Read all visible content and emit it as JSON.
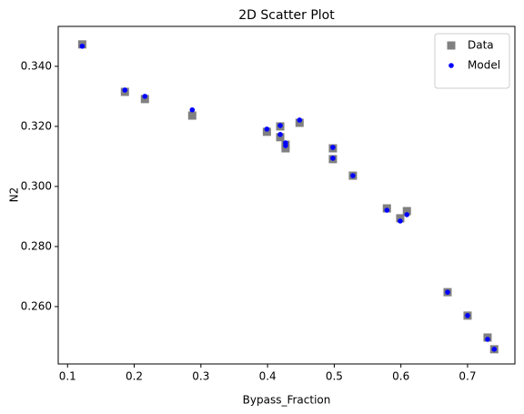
{
  "chart_data": {
    "type": "scatter",
    "title": "2D Scatter Plot",
    "x_label": "Bypass_Fraction",
    "y_label": "N2",
    "xlim": [
      0.086,
      0.771
    ],
    "ylim": [
      0.2409,
      0.3533
    ],
    "xticks": [
      0.1,
      0.2,
      0.3,
      0.4,
      0.5,
      0.6,
      0.7
    ],
    "yticks": [
      {
        "value": 0.26,
        "label": "0.260"
      },
      {
        "value": 0.28,
        "label": "0.280"
      },
      {
        "value": 0.3,
        "label": "0.300"
      },
      {
        "value": 0.32,
        "label": "0.320"
      },
      {
        "value": 0.34,
        "label": "0.340"
      }
    ],
    "legend": "upper right",
    "series": [
      {
        "name": "Data",
        "color": "#808080",
        "marker": "square",
        "x": [
          0.122,
          0.186,
          0.216,
          0.287,
          0.399,
          0.419,
          0.419,
          0.427,
          0.427,
          0.448,
          0.498,
          0.498,
          0.528,
          0.579,
          0.599,
          0.609,
          0.67,
          0.7,
          0.73,
          0.74
        ],
        "values": [
          0.3473,
          0.3315,
          0.3291,
          0.3236,
          0.3182,
          0.32,
          0.3164,
          0.3139,
          0.3127,
          0.3212,
          0.3127,
          0.3091,
          0.3036,
          0.2927,
          0.2894,
          0.2918,
          0.2648,
          0.257,
          0.2497,
          0.2458
        ]
      },
      {
        "name": "Model",
        "color": "#0000ff",
        "marker": "circle",
        "x": [
          0.122,
          0.186,
          0.216,
          0.287,
          0.399,
          0.419,
          0.419,
          0.427,
          0.427,
          0.448,
          0.498,
          0.498,
          0.528,
          0.579,
          0.599,
          0.609,
          0.67,
          0.7,
          0.73,
          0.74
        ],
        "values": [
          0.3467,
          0.3321,
          0.33,
          0.3255,
          0.3191,
          0.3203,
          0.3173,
          0.3145,
          0.3136,
          0.3221,
          0.313,
          0.3094,
          0.3036,
          0.2921,
          0.2885,
          0.2906,
          0.2648,
          0.257,
          0.2491,
          0.2458
        ]
      }
    ]
  }
}
